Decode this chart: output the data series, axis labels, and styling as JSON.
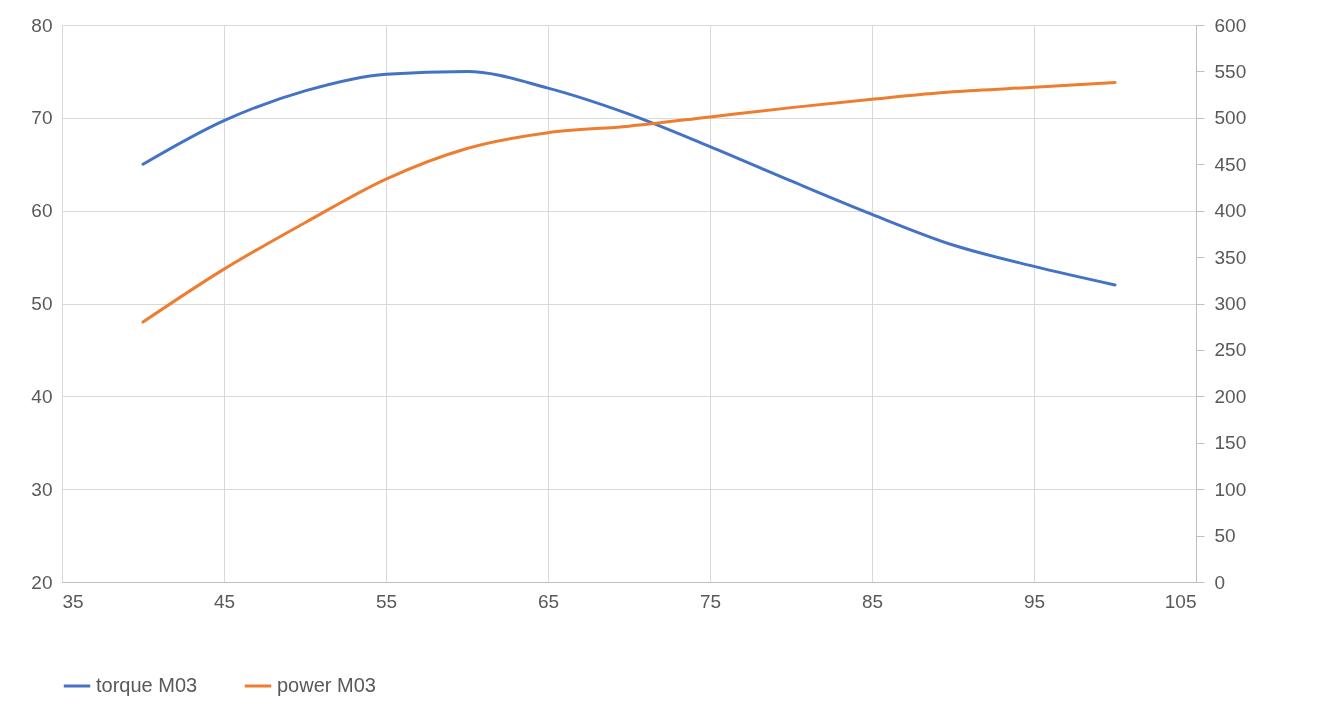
{
  "chart_data": {
    "type": "line",
    "x": [
      40,
      45,
      50,
      55,
      60,
      65,
      70,
      75,
      80,
      85,
      90,
      95,
      100
    ],
    "series": [
      {
        "name": "torque M03",
        "color": "#4472c4",
        "values": [
          65.0,
          69.7,
          72.9,
          74.7,
          75.0,
          73.2,
          70.4,
          66.9,
          63.2,
          59.6,
          56.3,
          54.0,
          52.0
        ]
      },
      {
        "name": "power M03",
        "color": "#ed7d31",
        "axis": "y2",
        "values": [
          280,
          337,
          387,
          434,
          467,
          484,
          491,
          501,
          511,
          520,
          528,
          533,
          538
        ]
      }
    ],
    "xlim": [
      35,
      105
    ],
    "xticks": [
      35,
      45,
      55,
      65,
      75,
      85,
      95,
      105
    ],
    "ylim": [
      20,
      80
    ],
    "yticks": [
      20,
      30,
      40,
      50,
      60,
      70,
      80
    ],
    "y2lim": [
      0,
      600
    ],
    "y2ticks": [
      0,
      50,
      100,
      150,
      200,
      250,
      300,
      350,
      400,
      450,
      500,
      550,
      600
    ],
    "grid": true,
    "legend": "bottom",
    "marker": "none",
    "line_style": "solid"
  }
}
